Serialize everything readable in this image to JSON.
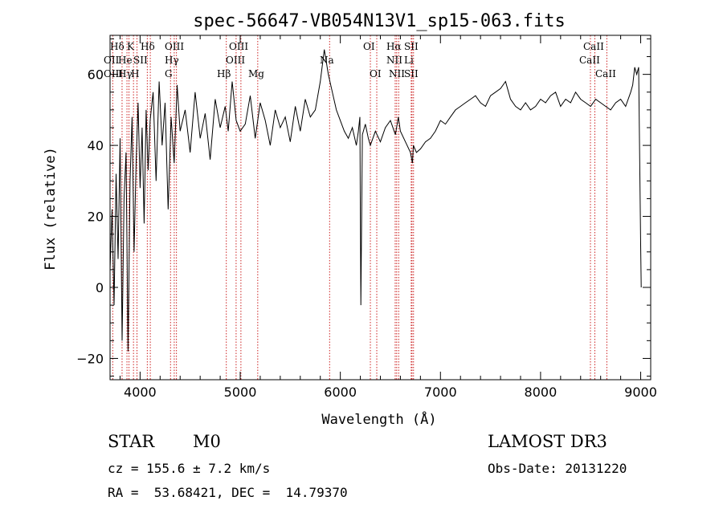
{
  "chart_data": {
    "type": "line",
    "title": "spec-56647-VB054N13V1_sp15-063.fits",
    "xlabel": "Wavelength (Å)",
    "ylabel": "Flux (relative)",
    "xlim": [
      3700,
      9100
    ],
    "ylim": [
      -26,
      71
    ],
    "xticks": [
      4000,
      5000,
      6000,
      7000,
      8000,
      9000
    ],
    "yticks": [
      -20,
      0,
      20,
      40,
      60
    ],
    "xtick_labels": [
      "4000",
      "5000",
      "6000",
      "7000",
      "8000",
      "9000"
    ],
    "ytick_labels": [
      "−20",
      "0",
      "20",
      "40",
      "60"
    ],
    "series": [
      {
        "name": "spectrum",
        "color": "#000000",
        "x": [
          3700,
          3720,
          3740,
          3760,
          3780,
          3800,
          3820,
          3840,
          3860,
          3880,
          3900,
          3920,
          3940,
          3960,
          3980,
          4000,
          4020,
          4040,
          4060,
          4080,
          4100,
          4130,
          4160,
          4190,
          4220,
          4250,
          4280,
          4310,
          4340,
          4370,
          4400,
          4450,
          4500,
          4550,
          4600,
          4650,
          4700,
          4750,
          4800,
          4850,
          4880,
          4920,
          4960,
          5000,
          5050,
          5100,
          5150,
          5200,
          5250,
          5300,
          5350,
          5400,
          5450,
          5500,
          5550,
          5600,
          5650,
          5700,
          5750,
          5800,
          5840,
          5880,
          5920,
          5960,
          6000,
          6040,
          6080,
          6120,
          6160,
          6180,
          6195,
          6200,
          6205,
          6220,
          6250,
          6280,
          6300,
          6350,
          6400,
          6450,
          6500,
          6550,
          6580,
          6600,
          6650,
          6700,
          6720,
          6730,
          6760,
          6800,
          6850,
          6900,
          6950,
          7000,
          7050,
          7100,
          7150,
          7200,
          7250,
          7300,
          7350,
          7400,
          7450,
          7500,
          7550,
          7600,
          7650,
          7700,
          7750,
          7800,
          7850,
          7900,
          7950,
          8000,
          8050,
          8100,
          8150,
          8200,
          8250,
          8300,
          8350,
          8400,
          8450,
          8500,
          8550,
          8600,
          8650,
          8700,
          8750,
          8800,
          8850,
          8900,
          8920,
          8940,
          8960,
          8980,
          9000,
          9005
        ],
        "y": [
          5,
          22,
          -5,
          32,
          8,
          42,
          -15,
          25,
          38,
          -18,
          30,
          48,
          10,
          35,
          52,
          28,
          45,
          18,
          50,
          33,
          47,
          55,
          30,
          58,
          40,
          52,
          22,
          48,
          35,
          57,
          44,
          50,
          38,
          55,
          42,
          49,
          36,
          53,
          45,
          51,
          44,
          58,
          47,
          44,
          46,
          54,
          42,
          52,
          47,
          40,
          50,
          45,
          48,
          41,
          51,
          44,
          53,
          48,
          50,
          58,
          67,
          60,
          55,
          50,
          47,
          44,
          42,
          45,
          40,
          44,
          48,
          20,
          -5,
          43,
          46,
          42,
          40,
          44,
          41,
          45,
          47,
          43,
          48,
          44,
          41,
          38,
          35,
          40,
          38,
          39,
          41,
          42,
          44,
          47,
          46,
          48,
          50,
          51,
          52,
          53,
          54,
          52,
          51,
          54,
          55,
          56,
          58,
          53,
          51,
          50,
          52,
          50,
          51,
          53,
          52,
          54,
          55,
          51,
          53,
          52,
          55,
          53,
          52,
          51,
          53,
          52,
          51,
          50,
          52,
          53,
          51,
          55,
          57,
          62,
          60,
          62,
          12,
          0
        ]
      }
    ],
    "lines": [
      {
        "label": "Hδ",
        "x": 4102
      },
      {
        "label": "Hγ",
        "x": 4341
      },
      {
        "label": "Hβ",
        "x": 4861
      },
      {
        "label": "Hα",
        "x": 6563
      },
      {
        "label": "Hδ",
        "x": 3889
      },
      {
        "label": "K",
        "x": 3934
      },
      {
        "label": "H",
        "x": 3969
      },
      {
        "label": "OIII",
        "x": 4363
      },
      {
        "label": "OIII",
        "x": 4959
      },
      {
        "label": "OIII",
        "x": 5007
      },
      {
        "label": "G",
        "x": 4304
      },
      {
        "label": "Mg",
        "x": 5175
      },
      {
        "label": "Na",
        "x": 5893
      },
      {
        "label": "OI",
        "x": 6300
      },
      {
        "label": "OI",
        "x": 6364
      },
      {
        "label": "NII",
        "x": 6548
      },
      {
        "label": "NII",
        "x": 6583
      },
      {
        "label": "SII",
        "x": 6716
      },
      {
        "label": "SII",
        "x": 6731
      },
      {
        "label": "Li",
        "x": 6708
      },
      {
        "label": "CaII",
        "x": 8498
      },
      {
        "label": "CaII",
        "x": 8542
      },
      {
        "label": "CaII",
        "x": 8662
      },
      {
        "label": "OII",
        "x": 3727
      },
      {
        "label": "OIII",
        "x": 3869
      },
      {
        "label": "He",
        "x": 3820
      },
      {
        "label": "SII",
        "x": 4072
      }
    ]
  },
  "line_labels": [
    {
      "text": "Hδ"
    },
    {
      "text": "K"
    },
    {
      "text": "Hδ"
    },
    {
      "text": "OIII"
    },
    {
      "text": "OIII"
    },
    {
      "text": "OI"
    },
    {
      "text": "Hα"
    },
    {
      "text": "SII"
    },
    {
      "text": "CaII"
    },
    {
      "text": "OII"
    },
    {
      "text": "He"
    },
    {
      "text": "SII"
    },
    {
      "text": "Hγ"
    },
    {
      "text": "OIII"
    },
    {
      "text": "Na"
    },
    {
      "text": "NII"
    },
    {
      "text": "Li"
    },
    {
      "text": "CaII"
    },
    {
      "text": "OIII"
    },
    {
      "text": "Hγ"
    },
    {
      "text": "H"
    },
    {
      "text": "G"
    },
    {
      "text": "Hβ"
    },
    {
      "text": "Mg"
    },
    {
      "text": "OI"
    },
    {
      "text": "NII"
    },
    {
      "text": "SII"
    },
    {
      "text": "CaII"
    }
  ],
  "footer": {
    "object_class": "STAR",
    "subclass": "M0",
    "cz": "cz = 155.6 ± 7.2 km/s",
    "radec": "RA =  53.68421, DEC =  14.79370",
    "survey": "LAMOST DR3",
    "obs_date": "Obs-Date: 20131220"
  },
  "colors": {
    "axis": "#000000",
    "lines": "#cc2222",
    "spectrum": "#000000"
  }
}
